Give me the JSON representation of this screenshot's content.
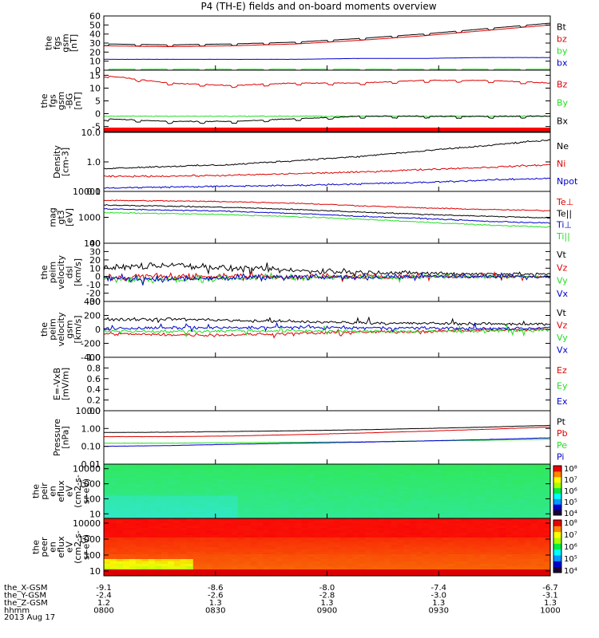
{
  "title": "P4 (TH-E) fields and on-board moments overview",
  "colors": {
    "black": "#000000",
    "red": "#dd0000",
    "green": "#22dd22",
    "blue": "#0000cc"
  },
  "chart_data": [
    {
      "type": "line",
      "name": "fgs-gsm-1",
      "ylabel": [
        "the",
        "fgs",
        "gsm",
        "[nT]"
      ],
      "ylim": [
        0,
        60
      ],
      "yscale": "linear",
      "yticks": [
        "0",
        "10",
        "20",
        "30",
        "40",
        "50",
        "60"
      ],
      "series": [
        {
          "name": "Bt",
          "color": "#000000",
          "values": [
            29,
            28,
            29,
            31,
            35,
            40,
            46,
            52
          ]
        },
        {
          "name": "bz",
          "color": "#dd0000",
          "values": [
            27,
            26,
            27,
            29,
            33,
            38,
            44,
            50
          ]
        },
        {
          "name": "by",
          "color": "#22dd22",
          "values": [
            1,
            1,
            1,
            1,
            1,
            1,
            1,
            1
          ]
        },
        {
          "name": "bx",
          "color": "#0000cc",
          "values": [
            12,
            12,
            12,
            12,
            13,
            13,
            14,
            14
          ]
        }
      ]
    },
    {
      "type": "line",
      "name": "fgs-gsm-2",
      "ylabel": [
        "the",
        "fgs",
        "gsm",
        "-BG",
        "[nT]"
      ],
      "ylim": [
        -7,
        17
      ],
      "yscale": "linear",
      "yticks": [
        "-5",
        "0",
        "5",
        "10",
        "15"
      ],
      "series": [
        {
          "name": "Bz",
          "color": "#dd0000",
          "values": [
            15,
            12,
            11,
            12,
            12,
            13,
            13,
            12
          ]
        },
        {
          "name": "By",
          "color": "#22dd22",
          "values": [
            -1,
            -1,
            -1,
            -1,
            -1,
            -1,
            -1,
            -1
          ]
        },
        {
          "name": "Bx",
          "color": "#000000",
          "values": [
            -2,
            -3,
            -3,
            -2,
            -1,
            -1,
            -1,
            -1
          ]
        }
      ]
    },
    {
      "type": "line",
      "name": "density",
      "ylabel": [
        "Density",
        "[cm-3]"
      ],
      "ylim": [
        0.1,
        10
      ],
      "yscale": "log",
      "yticks": [
        "0.1",
        "1.0",
        "10.0"
      ],
      "series": [
        {
          "name": "Ne",
          "color": "#000000",
          "values": [
            0.6,
            0.7,
            0.8,
            1.1,
            1.5,
            2.3,
            3.5,
            5.5
          ]
        },
        {
          "name": "Ni",
          "color": "#dd0000",
          "values": [
            0.32,
            0.33,
            0.35,
            0.4,
            0.45,
            0.55,
            0.65,
            0.8
          ]
        },
        {
          "name": "Npot",
          "color": "#0000cc",
          "values": [
            0.13,
            0.14,
            0.15,
            0.16,
            0.18,
            0.2,
            0.24,
            0.28
          ]
        }
      ]
    },
    {
      "type": "line",
      "name": "temperature",
      "ylabel": [
        "mag",
        "gt3",
        "[eV]"
      ],
      "ylim": [
        100,
        10000
      ],
      "yscale": "log",
      "yticks": [
        "100",
        "1000",
        "10000"
      ],
      "series": [
        {
          "name": "Te⊥",
          "color": "#dd0000",
          "values": [
            4500,
            4300,
            4000,
            3500,
            2800,
            2300,
            2000,
            1800
          ]
        },
        {
          "name": "Te||",
          "color": "#000000",
          "values": [
            3000,
            2700,
            2400,
            2000,
            1600,
            1300,
            1100,
            950
          ]
        },
        {
          "name": "Ti⊥",
          "color": "#0000cc",
          "values": [
            2100,
            1900,
            1700,
            1400,
            1100,
            900,
            700,
            600
          ]
        },
        {
          "name": "Ti||",
          "color": "#22dd22",
          "values": [
            1500,
            1400,
            1250,
            1050,
            850,
            650,
            500,
            420
          ]
        }
      ]
    },
    {
      "type": "line",
      "name": "peim-velocity-dsl",
      "ylabel": [
        "the",
        "peim",
        "velocity",
        "dsl",
        "[km/s]"
      ],
      "ylim": [
        -30,
        40
      ],
      "yscale": "linear",
      "yticks": [
        "-30",
        "-20",
        "-10",
        "0",
        "10",
        "20",
        "30",
        "40"
      ],
      "series": [
        {
          "name": "Vt",
          "color": "#000000",
          "values": [
            10,
            14,
            10,
            7,
            5,
            4,
            3,
            3
          ]
        },
        {
          "name": "Vz",
          "color": "#dd0000",
          "values": [
            -1,
            0,
            0,
            0,
            0,
            0,
            0,
            0
          ]
        },
        {
          "name": "Vy",
          "color": "#22dd22",
          "values": [
            -3,
            -4,
            -2,
            -1,
            -1,
            0,
            0,
            0
          ]
        },
        {
          "name": "Vx",
          "color": "#0000cc",
          "values": [
            -2,
            -3,
            -2,
            -1,
            -1,
            0,
            0,
            0
          ]
        }
      ]
    },
    {
      "type": "line",
      "name": "peim-velocity-gsm",
      "ylabel": [
        "the",
        "peim",
        "velocity",
        "gsm",
        "[km/s]"
      ],
      "ylim": [
        -400,
        400
      ],
      "yscale": "linear",
      "yticks": [
        "-400",
        "-200",
        "0",
        "200",
        "400"
      ],
      "series": [
        {
          "name": "Vt",
          "color": "#000000",
          "values": [
            140,
            150,
            130,
            110,
            95,
            85,
            80,
            75
          ]
        },
        {
          "name": "Vz",
          "color": "#dd0000",
          "values": [
            -60,
            -80,
            -80,
            -60,
            -40,
            -30,
            -10,
            0
          ]
        },
        {
          "name": "Vy",
          "color": "#22dd22",
          "values": [
            -20,
            -30,
            -20,
            -20,
            -30,
            -30,
            -20,
            -10
          ]
        },
        {
          "name": "Vx",
          "color": "#0000cc",
          "values": [
            10,
            20,
            20,
            30,
            20,
            20,
            10,
            20
          ]
        }
      ]
    },
    {
      "type": "line",
      "name": "efield",
      "ylabel": [
        "E=-VxB",
        "[mV/m]"
      ],
      "ylim": [
        0,
        1
      ],
      "yscale": "linear",
      "yticks": [
        "0.0",
        "0.2",
        "0.4",
        "0.6",
        "0.8",
        "1.0"
      ],
      "series": [
        {
          "name": "Ez",
          "color": "#dd0000",
          "values": []
        },
        {
          "name": "Ey",
          "color": "#22dd22",
          "values": []
        },
        {
          "name": "Ex",
          "color": "#0000cc",
          "values": []
        }
      ]
    },
    {
      "type": "line",
      "name": "pressure",
      "ylabel": [
        "Pressure",
        "[nPa]"
      ],
      "ylim": [
        0.01,
        10
      ],
      "yscale": "log",
      "yticks": [
        "0.01",
        "0.10",
        "1.00",
        "10.00"
      ],
      "series": [
        {
          "name": "Pt",
          "color": "#000000",
          "values": [
            0.6,
            0.62,
            0.68,
            0.75,
            0.85,
            1.0,
            1.2,
            1.5
          ]
        },
        {
          "name": "Pb",
          "color": "#dd0000",
          "values": [
            0.35,
            0.35,
            0.38,
            0.45,
            0.55,
            0.7,
            0.9,
            1.2
          ]
        },
        {
          "name": "Pe",
          "color": "#22dd22",
          "values": [
            0.15,
            0.15,
            0.16,
            0.17,
            0.18,
            0.2,
            0.22,
            0.25
          ]
        },
        {
          "name": "Pi",
          "color": "#0000cc",
          "values": [
            0.1,
            0.11,
            0.13,
            0.15,
            0.17,
            0.2,
            0.24,
            0.3
          ]
        }
      ]
    },
    {
      "type": "heatmap",
      "name": "peir-energy-flux",
      "ylabel": [
        "the",
        "peir",
        "en",
        "eflux",
        "eV",
        "(cm2-s-",
        "sr-eV)"
      ],
      "ylim": [
        5,
        20000
      ],
      "yscale": "log",
      "yticks": [
        "10",
        "100",
        "1000",
        "10000"
      ],
      "colorbar": {
        "ticks": [
          "10⁴",
          "10⁵",
          "10⁶",
          "10⁷",
          "10⁸"
        ]
      }
    },
    {
      "type": "heatmap",
      "name": "peer-energy-flux",
      "ylabel": [
        "the",
        "peer",
        "en",
        "eflux",
        "eV",
        "(cm2-s-",
        "sr-eV)"
      ],
      "ylim": [
        5,
        20000
      ],
      "yscale": "log",
      "yticks": [
        "10",
        "100",
        "1000",
        "10000"
      ],
      "colorbar": {
        "ticks": [
          "10⁴",
          "10⁵",
          "10⁶",
          "10⁷",
          "10⁸"
        ]
      }
    }
  ],
  "xaxis": {
    "rows": [
      {
        "label": "the_X-GSM",
        "values": [
          "-9.1",
          "-8.6",
          "-8.0",
          "-7.4",
          "-6.7"
        ]
      },
      {
        "label": "the_Y-GSM",
        "values": [
          "-2.4",
          "-2.6",
          "-2.8",
          "-3.0",
          "-3.1"
        ]
      },
      {
        "label": "the_Z-GSM",
        "values": [
          "1.2",
          "1.3",
          "1.3",
          "1.3",
          "1.3"
        ]
      },
      {
        "label": "hhmm",
        "values": [
          "0800",
          "0830",
          "0900",
          "0930",
          "1000"
        ]
      }
    ],
    "date": "2013 Aug 17"
  }
}
